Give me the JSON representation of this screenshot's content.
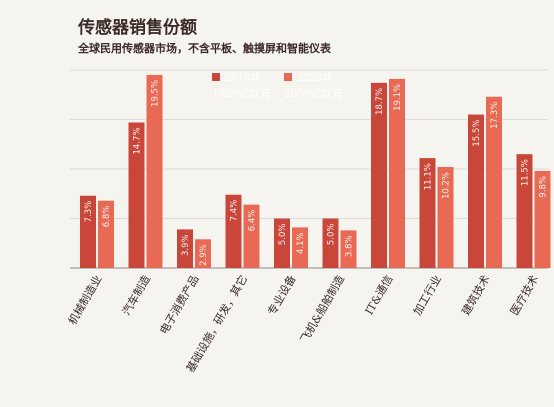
{
  "chart_data": {
    "type": "bar",
    "title": "传感器销售份额",
    "subtitle": "全球民用传感器市场，不含平板、触摸屏和智能仪表",
    "categories": [
      "机械制造业",
      "汽车制造",
      "电子消费产品",
      "基础设施，研发，其它",
      "专业设备",
      "飞机&船舶制造",
      "IT&通信",
      "加工行业",
      "建筑技术",
      "医疗技术"
    ],
    "series": [
      {
        "name": "2010年",
        "total": "1020亿欧元",
        "values": [
          7.3,
          14.7,
          3.9,
          7.4,
          5.0,
          5.0,
          18.7,
          11.1,
          15.5,
          11.5
        ],
        "labels": [
          "7.3%",
          "14.7%",
          "3.9%",
          "7.4%",
          "5.0%",
          "5.0%",
          "18.7%",
          "11.1%",
          "15.5%",
          "11.5%"
        ],
        "color": "#c9473a"
      },
      {
        "name": "2020年",
        "total": "2050亿欧元",
        "values": [
          6.8,
          19.5,
          2.9,
          6.4,
          4.1,
          3.8,
          19.1,
          10.2,
          17.3,
          9.8
        ],
        "labels": [
          "6.8%",
          "19.5%",
          "2.9%",
          "6.4%",
          "4.1%",
          "3.8%",
          "19.1%",
          "10.2%",
          "17.3%",
          "9.8%"
        ],
        "color": "#e86a55"
      }
    ],
    "ylim": [
      0,
      20
    ],
    "grid": true,
    "legend": "top-center"
  }
}
